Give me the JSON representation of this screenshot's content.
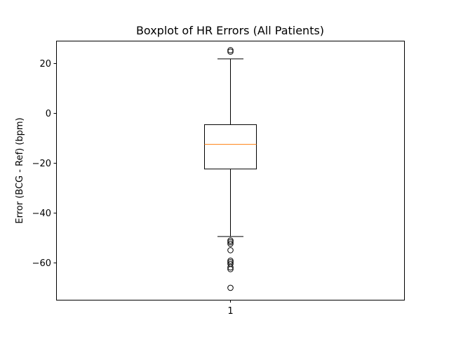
{
  "chart_data": {
    "type": "box",
    "title": "Boxplot of HR Errors (All Patients)",
    "xlabel": "",
    "ylabel": "Error (BCG - Ref) (bpm)",
    "categories": [
      "1"
    ],
    "ylim": [
      -75,
      29
    ],
    "yticks": [
      20,
      0,
      -20,
      -40,
      -60
    ],
    "ytick_labels": [
      "20",
      "0",
      "−20",
      "−40",
      "−60"
    ],
    "grid": false,
    "box": {
      "whisker_high": 21.7,
      "q3": -4.7,
      "median": -12.6,
      "q1": -22.5,
      "whisker_low": -49.6,
      "outliers": [
        25.2,
        24.6,
        -51.2,
        -51.8,
        -52.5,
        -55.1,
        -59.3,
        -59.9,
        -60.6,
        -62.0,
        -62.7,
        -70.2
      ]
    },
    "colors": {
      "box": "#000000",
      "median": "#ff7f0e",
      "outlier": "#000000"
    }
  }
}
